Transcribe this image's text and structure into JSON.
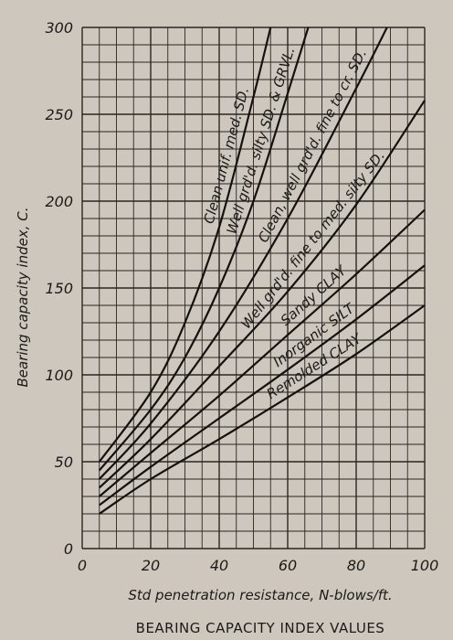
{
  "chart_data": {
    "type": "line",
    "title": "BEARING CAPACITY INDEX VALUES",
    "xlabel": "Std penetration resistance, N-blows/ft.",
    "ylabel": "Bearing capacity index, C.",
    "xlim": [
      0,
      100
    ],
    "ylim": [
      0,
      300
    ],
    "x_ticks": [
      "0",
      "20",
      "40",
      "60",
      "80",
      "100"
    ],
    "y_ticks": [
      "0",
      "50",
      "100",
      "150",
      "200",
      "250",
      "300"
    ],
    "grid": true,
    "series": [
      {
        "name": "Clean unif. med. SD.",
        "x": [
          5,
          20,
          30,
          40,
          50,
          55
        ],
        "y": [
          50,
          90,
          130,
          185,
          260,
          300
        ]
      },
      {
        "name": "Well grd'd. silty SD. & GRVL.",
        "x": [
          5,
          20,
          30,
          40,
          50,
          60,
          66
        ],
        "y": [
          45,
          80,
          110,
          150,
          200,
          262,
          300
        ]
      },
      {
        "name": "Clean, well grd'd. fine to cr. SD.",
        "x": [
          5,
          20,
          40,
          60,
          80,
          89
        ],
        "y": [
          40,
          72,
          125,
          190,
          265,
          300
        ]
      },
      {
        "name": "Well grd'd. fine to med. silty SD.",
        "x": [
          5,
          20,
          40,
          60,
          80,
          100
        ],
        "y": [
          35,
          63,
          105,
          148,
          198,
          258
        ]
      },
      {
        "name": "Sandy CLAY",
        "x": [
          5,
          20,
          40,
          60,
          80,
          100
        ],
        "y": [
          30,
          55,
          88,
          123,
          158,
          195
        ]
      },
      {
        "name": "Inorganic SILT",
        "x": [
          5,
          20,
          40,
          60,
          80,
          100
        ],
        "y": [
          25,
          47,
          75,
          103,
          132,
          163
        ]
      },
      {
        "name": "Remolded CLAY",
        "x": [
          5,
          20,
          40,
          60,
          80,
          100
        ],
        "y": [
          20,
          40,
          63,
          87,
          112,
          140
        ]
      }
    ]
  }
}
